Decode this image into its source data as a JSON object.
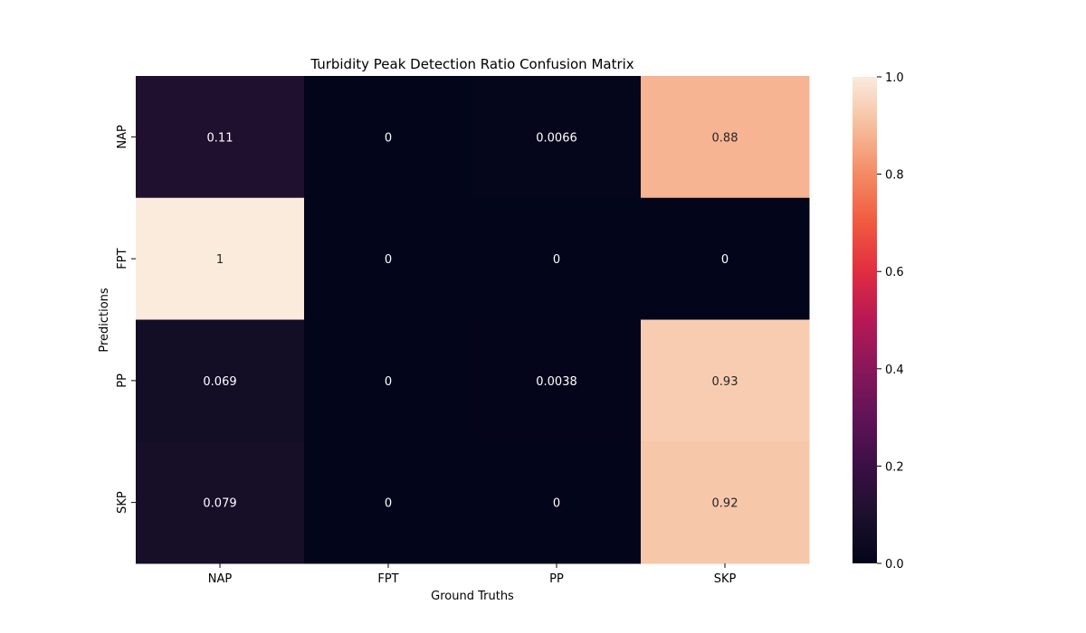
{
  "chart_data": {
    "type": "heatmap",
    "title": "Turbidity Peak Detection Ratio Confusion Matrix",
    "xlabel": "Ground Truths",
    "ylabel": "Predictions",
    "x_categories": [
      "NAP",
      "FPT",
      "PP",
      "SKP"
    ],
    "y_categories": [
      "NAP",
      "FPT",
      "PP",
      "SKP"
    ],
    "values": [
      [
        0.11,
        0,
        0.0066,
        0.88
      ],
      [
        1,
        0,
        0,
        0
      ],
      [
        0.069,
        0,
        0.0038,
        0.93
      ],
      [
        0.079,
        0,
        0,
        0.92
      ]
    ],
    "annotations": [
      [
        "0.11",
        "0",
        "0.0066",
        "0.88"
      ],
      [
        "1",
        "0",
        "0",
        "0"
      ],
      [
        "0.069",
        "0",
        "0.0038",
        "0.93"
      ],
      [
        "0.079",
        "0",
        "0",
        "0.92"
      ]
    ],
    "colorbar": {
      "range": [
        0,
        1
      ],
      "ticks": [
        "0.0",
        "0.2",
        "0.4",
        "0.6",
        "0.8",
        "1.0"
      ],
      "colormap": "rocket"
    },
    "grid": false,
    "legend": "colorbar-right"
  }
}
